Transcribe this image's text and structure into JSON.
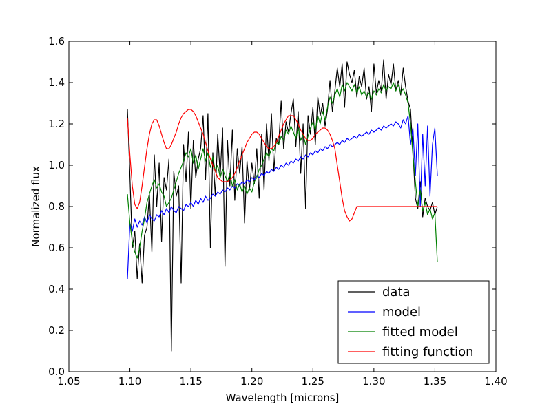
{
  "chart_data": {
    "type": "line",
    "title": "",
    "xlabel": "Wavelength [microns]",
    "ylabel": "Normalized flux",
    "xlim": [
      1.05,
      1.4
    ],
    "ylim": [
      0.0,
      1.6
    ],
    "xticks": [
      "1.05",
      "1.10",
      "1.15",
      "1.20",
      "1.25",
      "1.30",
      "1.35",
      "1.40"
    ],
    "xtick_values": [
      1.05,
      1.1,
      1.15,
      1.2,
      1.25,
      1.3,
      1.35,
      1.4
    ],
    "yticks": [
      "0.0",
      "0.2",
      "0.4",
      "0.6",
      "0.8",
      "1.0",
      "1.2",
      "1.4",
      "1.6"
    ],
    "ytick_values": [
      0.0,
      0.2,
      0.4,
      0.6,
      0.8,
      1.0,
      1.2,
      1.4,
      1.6
    ],
    "grid": false,
    "legend_position": "lower-right",
    "series": [
      {
        "name": "data",
        "color": "#000000",
        "x": [
          1.098,
          1.1,
          1.102,
          1.104,
          1.106,
          1.108,
          1.11,
          1.112,
          1.114,
          1.116,
          1.118,
          1.12,
          1.122,
          1.124,
          1.126,
          1.128,
          1.13,
          1.132,
          1.134,
          1.136,
          1.138,
          1.14,
          1.142,
          1.144,
          1.146,
          1.148,
          1.15,
          1.152,
          1.154,
          1.156,
          1.158,
          1.16,
          1.162,
          1.164,
          1.166,
          1.168,
          1.17,
          1.172,
          1.174,
          1.176,
          1.178,
          1.18,
          1.182,
          1.184,
          1.186,
          1.188,
          1.19,
          1.192,
          1.194,
          1.196,
          1.198,
          1.2,
          1.202,
          1.204,
          1.206,
          1.208,
          1.21,
          1.212,
          1.214,
          1.216,
          1.218,
          1.22,
          1.222,
          1.224,
          1.226,
          1.228,
          1.23,
          1.232,
          1.234,
          1.236,
          1.238,
          1.24,
          1.242,
          1.244,
          1.246,
          1.248,
          1.25,
          1.252,
          1.254,
          1.256,
          1.258,
          1.26,
          1.262,
          1.264,
          1.266,
          1.268,
          1.27,
          1.272,
          1.274,
          1.276,
          1.278,
          1.28,
          1.282,
          1.284,
          1.286,
          1.288,
          1.29,
          1.292,
          1.294,
          1.296,
          1.298,
          1.3,
          1.302,
          1.304,
          1.306,
          1.308,
          1.31,
          1.312,
          1.314,
          1.316,
          1.318,
          1.32,
          1.322,
          1.324,
          1.326,
          1.328,
          1.33,
          1.332,
          1.334,
          1.336,
          1.338,
          1.34,
          1.342,
          1.344,
          1.346,
          1.348,
          1.35,
          1.352
        ],
        "y": [
          1.27,
          0.95,
          0.6,
          0.68,
          0.45,
          0.62,
          0.43,
          0.66,
          0.7,
          0.86,
          0.58,
          1.05,
          0.8,
          1.01,
          0.63,
          0.94,
          0.88,
          1.03,
          0.1,
          0.97,
          0.85,
          0.9,
          0.43,
          1.1,
          0.92,
          1.16,
          0.79,
          1.12,
          0.94,
          1.03,
          1.08,
          1.24,
          0.93,
          1.25,
          0.6,
          1.06,
          0.85,
          1.15,
          0.95,
          1.18,
          0.51,
          1.12,
          0.9,
          1.17,
          0.83,
          1.08,
          0.96,
          1.09,
          0.72,
          1.02,
          0.88,
          1.01,
          0.91,
          1.08,
          0.84,
          1.15,
          0.88,
          1.2,
          1.02,
          1.25,
          0.97,
          1.13,
          1.1,
          1.31,
          1.08,
          1.21,
          1.16,
          1.25,
          1.32,
          1.09,
          1.26,
          0.96,
          1.2,
          0.79,
          1.24,
          1.15,
          1.28,
          1.1,
          1.33,
          1.24,
          1.3,
          1.19,
          1.27,
          1.41,
          1.26,
          1.36,
          1.47,
          1.38,
          1.49,
          1.28,
          1.5,
          1.44,
          1.4,
          1.46,
          1.33,
          1.43,
          1.38,
          1.47,
          1.32,
          1.38,
          1.26,
          1.49,
          1.35,
          1.41,
          1.36,
          1.51,
          1.32,
          1.44,
          1.39,
          1.49,
          1.36,
          1.41,
          1.34,
          1.47,
          1.38,
          1.31,
          1.27,
          1.07,
          0.84,
          0.79,
          0.92,
          0.75,
          0.84,
          0.8,
          0.78,
          0.82,
          0.76,
          0.8
        ]
      },
      {
        "name": "model",
        "color": "#0000ff",
        "x": [
          1.098,
          1.1,
          1.102,
          1.104,
          1.106,
          1.108,
          1.11,
          1.112,
          1.114,
          1.116,
          1.118,
          1.12,
          1.122,
          1.124,
          1.126,
          1.128,
          1.13,
          1.132,
          1.134,
          1.136,
          1.138,
          1.14,
          1.142,
          1.144,
          1.146,
          1.148,
          1.15,
          1.152,
          1.154,
          1.156,
          1.158,
          1.16,
          1.162,
          1.164,
          1.166,
          1.168,
          1.17,
          1.172,
          1.174,
          1.176,
          1.178,
          1.18,
          1.182,
          1.184,
          1.186,
          1.188,
          1.19,
          1.192,
          1.194,
          1.196,
          1.198,
          1.2,
          1.202,
          1.204,
          1.206,
          1.208,
          1.21,
          1.212,
          1.214,
          1.216,
          1.218,
          1.22,
          1.222,
          1.224,
          1.226,
          1.228,
          1.23,
          1.232,
          1.234,
          1.236,
          1.238,
          1.24,
          1.242,
          1.244,
          1.246,
          1.248,
          1.25,
          1.252,
          1.254,
          1.256,
          1.258,
          1.26,
          1.262,
          1.264,
          1.266,
          1.268,
          1.27,
          1.272,
          1.274,
          1.276,
          1.278,
          1.28,
          1.282,
          1.284,
          1.286,
          1.288,
          1.29,
          1.292,
          1.294,
          1.296,
          1.298,
          1.3,
          1.302,
          1.304,
          1.306,
          1.308,
          1.31,
          1.312,
          1.314,
          1.316,
          1.318,
          1.32,
          1.322,
          1.324,
          1.326,
          1.328,
          1.33,
          1.332,
          1.334,
          1.336,
          1.338,
          1.34,
          1.342,
          1.344,
          1.346,
          1.348,
          1.35,
          1.352
        ],
        "y": [
          0.45,
          0.72,
          0.68,
          0.74,
          0.7,
          0.73,
          0.71,
          0.75,
          0.72,
          0.76,
          0.74,
          0.73,
          0.76,
          0.75,
          0.78,
          0.76,
          0.79,
          0.77,
          0.8,
          0.78,
          0.77,
          0.8,
          0.79,
          0.78,
          0.81,
          0.8,
          0.82,
          0.8,
          0.83,
          0.81,
          0.84,
          0.82,
          0.85,
          0.83,
          0.84,
          0.86,
          0.85,
          0.87,
          0.86,
          0.88,
          0.87,
          0.89,
          0.88,
          0.9,
          0.89,
          0.91,
          0.9,
          0.92,
          0.91,
          0.93,
          0.92,
          0.94,
          0.93,
          0.95,
          0.94,
          0.96,
          0.95,
          0.97,
          0.96,
          0.98,
          0.97,
          0.99,
          0.98,
          1.0,
          0.99,
          1.01,
          1.0,
          1.02,
          1.01,
          1.03,
          1.02,
          1.04,
          1.03,
          1.05,
          1.04,
          1.06,
          1.05,
          1.07,
          1.06,
          1.08,
          1.07,
          1.09,
          1.08,
          1.1,
          1.09,
          1.1,
          1.11,
          1.1,
          1.12,
          1.11,
          1.13,
          1.12,
          1.13,
          1.14,
          1.13,
          1.15,
          1.14,
          1.15,
          1.16,
          1.15,
          1.17,
          1.16,
          1.17,
          1.18,
          1.17,
          1.19,
          1.18,
          1.19,
          1.2,
          1.19,
          1.21,
          1.2,
          1.18,
          1.22,
          1.2,
          1.24,
          1.1,
          1.18,
          0.95,
          1.2,
          0.8,
          1.15,
          0.9,
          1.19,
          0.85,
          1.1,
          1.18,
          0.95
        ]
      },
      {
        "name": "fitted model",
        "color": "#008000",
        "x": [
          1.098,
          1.1,
          1.102,
          1.104,
          1.106,
          1.108,
          1.11,
          1.112,
          1.114,
          1.116,
          1.118,
          1.12,
          1.122,
          1.124,
          1.126,
          1.128,
          1.13,
          1.132,
          1.134,
          1.136,
          1.138,
          1.14,
          1.142,
          1.144,
          1.146,
          1.148,
          1.15,
          1.152,
          1.154,
          1.156,
          1.158,
          1.16,
          1.162,
          1.164,
          1.166,
          1.168,
          1.17,
          1.172,
          1.174,
          1.176,
          1.178,
          1.18,
          1.182,
          1.184,
          1.186,
          1.188,
          1.19,
          1.192,
          1.194,
          1.196,
          1.198,
          1.2,
          1.202,
          1.204,
          1.206,
          1.208,
          1.21,
          1.212,
          1.214,
          1.216,
          1.218,
          1.22,
          1.222,
          1.224,
          1.226,
          1.228,
          1.23,
          1.232,
          1.234,
          1.236,
          1.238,
          1.24,
          1.242,
          1.244,
          1.246,
          1.248,
          1.25,
          1.252,
          1.254,
          1.256,
          1.258,
          1.26,
          1.262,
          1.264,
          1.266,
          1.268,
          1.27,
          1.272,
          1.274,
          1.276,
          1.278,
          1.28,
          1.282,
          1.284,
          1.286,
          1.288,
          1.29,
          1.292,
          1.294,
          1.296,
          1.298,
          1.3,
          1.302,
          1.304,
          1.306,
          1.308,
          1.31,
          1.312,
          1.314,
          1.316,
          1.318,
          1.32,
          1.322,
          1.324,
          1.326,
          1.328,
          1.33,
          1.332,
          1.334,
          1.336,
          1.338,
          1.34,
          1.342,
          1.344,
          1.346,
          1.348,
          1.35,
          1.352
        ],
        "y": [
          0.86,
          0.72,
          0.63,
          0.58,
          0.55,
          0.6,
          0.68,
          0.74,
          0.82,
          0.86,
          0.9,
          0.93,
          0.89,
          0.91,
          0.87,
          0.85,
          0.8,
          0.82,
          0.84,
          0.88,
          0.92,
          0.96,
          0.99,
          1.02,
          1.06,
          1.04,
          1.08,
          1.01,
          1.05,
          0.98,
          1.03,
          1.08,
          1.02,
          1.06,
          0.99,
          1.04,
          0.97,
          1.0,
          0.94,
          0.98,
          0.95,
          0.92,
          0.96,
          0.9,
          0.93,
          0.88,
          0.91,
          0.87,
          0.9,
          0.86,
          0.89,
          0.87,
          0.92,
          0.94,
          0.98,
          1.0,
          1.03,
          1.06,
          1.04,
          1.08,
          1.07,
          1.11,
          1.1,
          1.14,
          1.12,
          1.17,
          1.15,
          1.19,
          1.16,
          1.13,
          1.18,
          1.12,
          1.15,
          1.1,
          1.14,
          1.18,
          1.21,
          1.17,
          1.24,
          1.2,
          1.26,
          1.22,
          1.28,
          1.33,
          1.3,
          1.34,
          1.37,
          1.33,
          1.39,
          1.36,
          1.4,
          1.38,
          1.36,
          1.39,
          1.35,
          1.38,
          1.34,
          1.36,
          1.33,
          1.35,
          1.32,
          1.36,
          1.34,
          1.37,
          1.35,
          1.39,
          1.36,
          1.38,
          1.37,
          1.4,
          1.36,
          1.39,
          1.35,
          1.37,
          1.34,
          1.3,
          1.2,
          1.05,
          0.92,
          0.8,
          0.88,
          0.78,
          0.82,
          0.76,
          0.79,
          0.74,
          0.77,
          0.53
        ]
      },
      {
        "name": "fitting function",
        "color": "#ff0000",
        "x": [
          1.098,
          1.1,
          1.102,
          1.104,
          1.106,
          1.108,
          1.11,
          1.112,
          1.114,
          1.116,
          1.118,
          1.12,
          1.122,
          1.124,
          1.126,
          1.128,
          1.13,
          1.132,
          1.134,
          1.136,
          1.138,
          1.14,
          1.142,
          1.144,
          1.146,
          1.148,
          1.15,
          1.152,
          1.154,
          1.156,
          1.158,
          1.16,
          1.162,
          1.164,
          1.166,
          1.168,
          1.17,
          1.172,
          1.174,
          1.176,
          1.178,
          1.18,
          1.182,
          1.184,
          1.186,
          1.188,
          1.19,
          1.192,
          1.194,
          1.196,
          1.198,
          1.2,
          1.202,
          1.204,
          1.206,
          1.208,
          1.21,
          1.212,
          1.214,
          1.216,
          1.218,
          1.22,
          1.222,
          1.224,
          1.226,
          1.228,
          1.23,
          1.232,
          1.234,
          1.236,
          1.238,
          1.24,
          1.242,
          1.244,
          1.246,
          1.248,
          1.25,
          1.252,
          1.254,
          1.256,
          1.258,
          1.26,
          1.262,
          1.264,
          1.266,
          1.268,
          1.27,
          1.272,
          1.274,
          1.276,
          1.278,
          1.28,
          1.282,
          1.284,
          1.286,
          1.288,
          1.29,
          1.292,
          1.294,
          1.296,
          1.298,
          1.3,
          1.302,
          1.304,
          1.306,
          1.308,
          1.31,
          1.312,
          1.314,
          1.316,
          1.318,
          1.32,
          1.322,
          1.324,
          1.326,
          1.328,
          1.33,
          1.332,
          1.334,
          1.336,
          1.338,
          1.34,
          1.342,
          1.344,
          1.346,
          1.348,
          1.35,
          1.352
        ],
        "y": [
          1.23,
          1.05,
          0.9,
          0.81,
          0.79,
          0.82,
          0.9,
          0.99,
          1.08,
          1.15,
          1.2,
          1.22,
          1.22,
          1.19,
          1.15,
          1.11,
          1.08,
          1.08,
          1.1,
          1.13,
          1.16,
          1.2,
          1.23,
          1.25,
          1.26,
          1.27,
          1.27,
          1.26,
          1.24,
          1.21,
          1.18,
          1.15,
          1.11,
          1.07,
          1.03,
          1.0,
          0.97,
          0.94,
          0.93,
          0.92,
          0.92,
          0.92,
          0.93,
          0.94,
          0.96,
          0.99,
          1.02,
          1.05,
          1.08,
          1.11,
          1.13,
          1.15,
          1.16,
          1.16,
          1.15,
          1.13,
          1.11,
          1.09,
          1.08,
          1.08,
          1.09,
          1.11,
          1.14,
          1.17,
          1.2,
          1.22,
          1.24,
          1.24,
          1.24,
          1.22,
          1.2,
          1.17,
          1.15,
          1.13,
          1.12,
          1.12,
          1.13,
          1.15,
          1.16,
          1.17,
          1.18,
          1.18,
          1.17,
          1.15,
          1.12,
          1.08,
          1.0,
          0.92,
          0.84,
          0.78,
          0.75,
          0.73,
          0.74,
          0.77,
          0.8,
          0.8,
          0.8,
          0.8,
          0.8,
          0.8,
          0.8,
          0.8,
          0.8,
          0.8,
          0.8,
          0.8,
          0.8,
          0.8,
          0.8,
          0.8,
          0.8,
          0.8,
          0.8,
          0.8,
          0.8,
          0.8,
          0.8,
          0.8,
          0.8,
          0.8,
          0.8,
          0.8,
          0.8,
          0.8,
          0.8,
          0.8,
          0.8,
          0.8
        ],
        "note_x_end": 1.352
      }
    ]
  }
}
